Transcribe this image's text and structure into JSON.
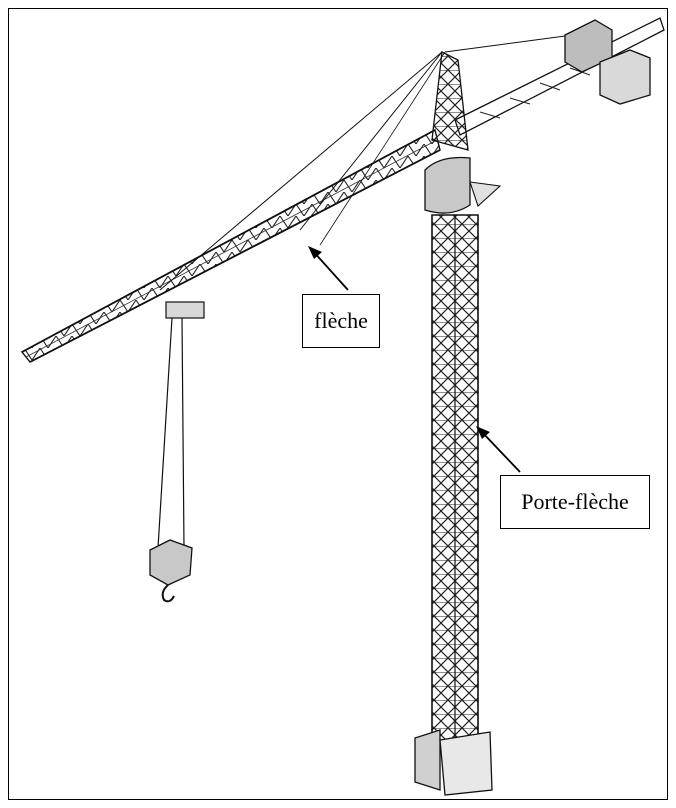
{
  "labels": {
    "jib": "flèche",
    "mast": "Porte-flèche"
  }
}
